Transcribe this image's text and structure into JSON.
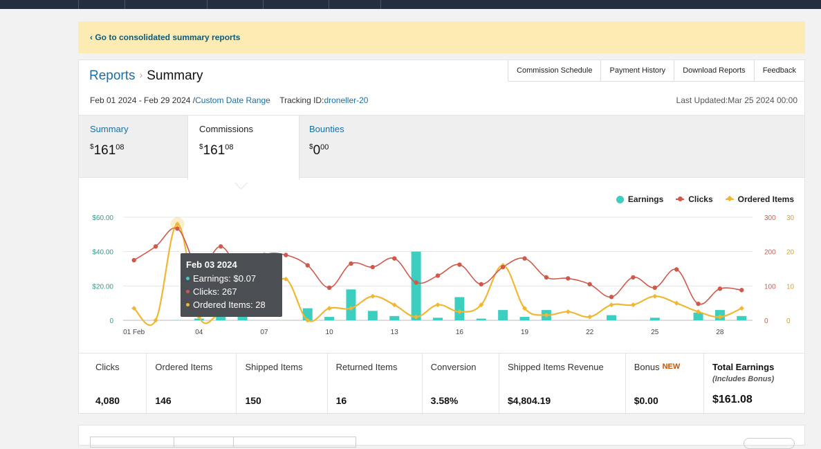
{
  "banner": {
    "link": "‹ Go to consolidated summary reports"
  },
  "breadcrumb": {
    "reports": "Reports",
    "separator": "›",
    "current": "Summary"
  },
  "top_tabs": [
    "Commission Schedule",
    "Payment History",
    "Download Reports",
    "Feedback"
  ],
  "date_range": "Feb 01 2024 - Feb 29 2024 /",
  "custom_date_range": "Custom Date Range",
  "tracking_label": "Tracking ID:",
  "tracking_id": "droneller-20",
  "last_updated": "Last Updated:Mar 25 2024 00:00",
  "money_tabs": [
    {
      "label": "Summary",
      "currency": "$",
      "whole": "161",
      "cents": "08"
    },
    {
      "label": "Commissions",
      "currency": "$",
      "whole": "161",
      "cents": "08"
    },
    {
      "label": "Bounties",
      "currency": "$",
      "whole": "0",
      "cents": "00"
    }
  ],
  "legend": {
    "earnings": "Earnings",
    "clicks": "Clicks",
    "ordered": "Ordered Items"
  },
  "tooltip": {
    "date": "Feb 03 2024",
    "earnings": "Earnings: $0.07",
    "clicks": "Clicks: 267",
    "ordered": "Ordered Items: 28"
  },
  "colors": {
    "earnings": "#3ccfc0",
    "clicks": "#d1584a",
    "ordered": "#f1b632",
    "link": "#1a6fa3"
  },
  "chart_data": {
    "type": "bar+line",
    "x_tick_labels": [
      "01 Feb",
      "04",
      "07",
      "10",
      "13",
      "16",
      "19",
      "22",
      "25",
      "28"
    ],
    "y_left_ticks": [
      "$60.00",
      "$40.00",
      "$20.00",
      "0"
    ],
    "y_right_clicks_ticks": [
      "300",
      "200",
      "100",
      "0"
    ],
    "y_right_ordered_ticks": [
      "30",
      "20",
      "10",
      "0"
    ],
    "ylim_left": [
      0,
      60
    ],
    "ylim_clicks": [
      0,
      300
    ],
    "ylim_ordered": [
      0,
      30
    ],
    "days": [
      1,
      2,
      3,
      4,
      5,
      6,
      7,
      8,
      9,
      10,
      11,
      12,
      13,
      14,
      15,
      16,
      17,
      18,
      19,
      20,
      21,
      22,
      23,
      24,
      25,
      26,
      27,
      28,
      29
    ],
    "series": [
      {
        "name": "Earnings",
        "values": [
          0,
          0,
          0.07,
          1,
          2,
          2,
          0,
          0,
          7,
          2,
          18,
          5.5,
          2.5,
          40,
          1.5,
          13.5,
          1,
          6,
          2,
          6,
          0,
          0,
          3,
          0,
          1.5,
          0,
          4.5,
          6,
          2.5
        ]
      },
      {
        "name": "Clicks",
        "values": [
          175,
          215,
          267,
          150,
          215,
          140,
          190,
          190,
          160,
          95,
          165,
          155,
          180,
          110,
          130,
          162,
          105,
          155,
          180,
          125,
          122,
          105,
          68,
          125,
          95,
          148,
          48,
          92,
          88
        ]
      },
      {
        "name": "Ordered Items",
        "values": [
          3.5,
          0,
          28,
          1,
          2,
          2,
          6,
          12,
          0,
          3.5,
          3.5,
          7,
          4.5,
          1,
          4.5,
          2.5,
          4.5,
          16,
          3.5,
          1.5,
          2.5,
          1,
          4.5,
          4.5,
          7,
          5,
          2.5,
          1,
          3.5
        ]
      }
    ]
  },
  "stats": [
    {
      "label": "Clicks",
      "value": "4,080"
    },
    {
      "label": "Ordered Items",
      "value": "146"
    },
    {
      "label": "Shipped Items",
      "value": "150"
    },
    {
      "label": "Returned Items",
      "value": "16"
    },
    {
      "label": "Conversion",
      "value": "3.58%"
    },
    {
      "label": "Shipped Items Revenue",
      "value": "$4,804.19"
    },
    {
      "label": "Bonus",
      "badge": "NEW",
      "value": "$0.00"
    },
    {
      "label": "Total Earnings",
      "sub": "(Includes Bonus)",
      "value": "$161.08"
    }
  ]
}
